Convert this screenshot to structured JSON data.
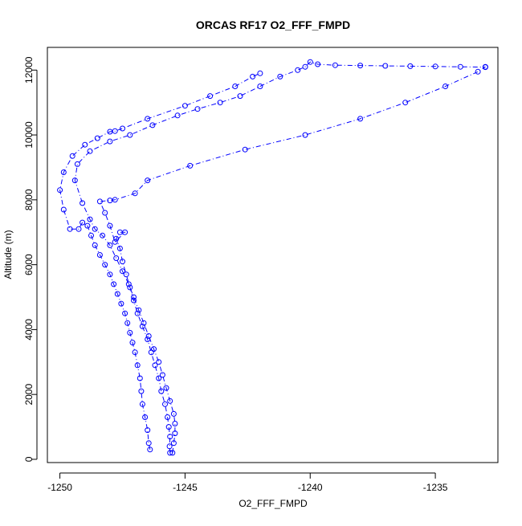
{
  "chart_data": {
    "type": "scatter",
    "title": "ORCAS RF17 O2_FFF_FMPD",
    "xlabel": "O2_FFF_FMPD",
    "ylabel": "Altitude (m)",
    "xlim": [
      -1250.5,
      -1232.5
    ],
    "ylim": [
      -100,
      12700
    ],
    "xticks": [
      -1250,
      -1245,
      -1240,
      -1235
    ],
    "yticks": [
      0,
      2000,
      4000,
      6000,
      8000,
      10000,
      12000
    ],
    "marker": "open-circle",
    "line_style": "dash-dot",
    "color": "#0000ff",
    "series": [
      {
        "values": [
          [
            -1246.4,
            300
          ],
          [
            -1246.45,
            500
          ],
          [
            -1246.5,
            900
          ],
          [
            -1246.6,
            1300
          ],
          [
            -1246.7,
            1700
          ],
          [
            -1246.75,
            2100
          ],
          [
            -1246.8,
            2500
          ],
          [
            -1246.9,
            2900
          ],
          [
            -1247.0,
            3300
          ],
          [
            -1247.1,
            3600
          ],
          [
            -1247.2,
            3900
          ],
          [
            -1247.3,
            4200
          ],
          [
            -1247.4,
            4500
          ],
          [
            -1247.55,
            4800
          ],
          [
            -1247.7,
            5100
          ],
          [
            -1247.85,
            5400
          ],
          [
            -1248.0,
            5700
          ],
          [
            -1248.2,
            6000
          ],
          [
            -1248.4,
            6300
          ],
          [
            -1248.6,
            6600
          ],
          [
            -1248.75,
            6900
          ],
          [
            -1248.9,
            7200
          ],
          [
            -1249.1,
            7300
          ],
          [
            -1249.25,
            7100
          ],
          [
            -1249.6,
            7100
          ],
          [
            -1249.85,
            7700
          ],
          [
            -1250.0,
            8300
          ],
          [
            -1249.85,
            8850
          ],
          [
            -1249.5,
            9350
          ],
          [
            -1249.0,
            9700
          ],
          [
            -1248.5,
            9900
          ],
          [
            -1248.0,
            10100
          ],
          [
            -1247.8,
            10120
          ],
          [
            -1247.5,
            10200
          ],
          [
            -1246.5,
            10500
          ],
          [
            -1245.0,
            10900
          ],
          [
            -1244.0,
            11200
          ],
          [
            -1243.0,
            11500
          ],
          [
            -1242.3,
            11800
          ],
          [
            -1242.0,
            11900
          ]
        ]
      },
      {
        "values": [
          [
            -1245.6,
            200
          ],
          [
            -1245.62,
            400
          ],
          [
            -1245.6,
            700
          ],
          [
            -1245.65,
            1000
          ],
          [
            -1245.7,
            1300
          ],
          [
            -1245.8,
            1700
          ],
          [
            -1245.95,
            2100
          ],
          [
            -1246.05,
            2500
          ],
          [
            -1246.2,
            2900
          ],
          [
            -1246.35,
            3300
          ],
          [
            -1246.5,
            3700
          ],
          [
            -1246.7,
            4100
          ],
          [
            -1246.9,
            4500
          ],
          [
            -1247.05,
            4900
          ],
          [
            -1247.2,
            5300
          ],
          [
            -1247.35,
            5700
          ],
          [
            -1247.5,
            6100
          ],
          [
            -1247.6,
            6500
          ],
          [
            -1247.75,
            6800
          ],
          [
            -1247.6,
            7000
          ],
          [
            -1247.4,
            7000
          ],
          [
            -1247.8,
            6700
          ],
          [
            -1248.0,
            7200
          ],
          [
            -1248.2,
            7600
          ],
          [
            -1248.4,
            7950
          ],
          [
            -1248.0,
            7980
          ],
          [
            -1247.8,
            8000
          ],
          [
            -1247.0,
            8200
          ],
          [
            -1246.5,
            8600
          ],
          [
            -1244.8,
            9050
          ],
          [
            -1242.6,
            9550
          ],
          [
            -1240.2,
            10000
          ],
          [
            -1238.0,
            10500
          ],
          [
            -1236.2,
            11000
          ],
          [
            -1234.6,
            11500
          ],
          [
            -1233.3,
            11950
          ],
          [
            -1233.0,
            12100
          ]
        ]
      },
      {
        "values": [
          [
            -1245.5,
            200
          ],
          [
            -1245.45,
            500
          ],
          [
            -1245.4,
            800
          ],
          [
            -1245.4,
            1100
          ],
          [
            -1245.45,
            1400
          ],
          [
            -1245.6,
            1800
          ],
          [
            -1245.75,
            2200
          ],
          [
            -1245.9,
            2600
          ],
          [
            -1246.05,
            3000
          ],
          [
            -1246.25,
            3400
          ],
          [
            -1246.45,
            3800
          ],
          [
            -1246.65,
            4200
          ],
          [
            -1246.85,
            4600
          ],
          [
            -1247.05,
            5000
          ],
          [
            -1247.25,
            5400
          ],
          [
            -1247.5,
            5800
          ],
          [
            -1247.75,
            6200
          ],
          [
            -1248.0,
            6600
          ],
          [
            -1248.3,
            6900
          ],
          [
            -1248.6,
            7100
          ],
          [
            -1248.8,
            7400
          ],
          [
            -1249.1,
            7900
          ],
          [
            -1249.4,
            8600
          ],
          [
            -1249.3,
            9100
          ],
          [
            -1248.8,
            9500
          ],
          [
            -1248.0,
            9800
          ],
          [
            -1247.2,
            10000
          ],
          [
            -1246.3,
            10300
          ],
          [
            -1245.3,
            10600
          ],
          [
            -1244.5,
            10800
          ],
          [
            -1243.6,
            11000
          ],
          [
            -1242.8,
            11200
          ],
          [
            -1242.0,
            11500
          ],
          [
            -1241.2,
            11800
          ],
          [
            -1240.5,
            12000
          ],
          [
            -1240.2,
            12100
          ],
          [
            -1240.0,
            12250
          ],
          [
            -1239.7,
            12180
          ],
          [
            -1239.0,
            12150
          ],
          [
            -1238.0,
            12140
          ],
          [
            -1237.0,
            12130
          ],
          [
            -1236.0,
            12120
          ],
          [
            -1235.0,
            12110
          ],
          [
            -1234.0,
            12100
          ],
          [
            -1233.0,
            12090
          ]
        ]
      }
    ]
  }
}
